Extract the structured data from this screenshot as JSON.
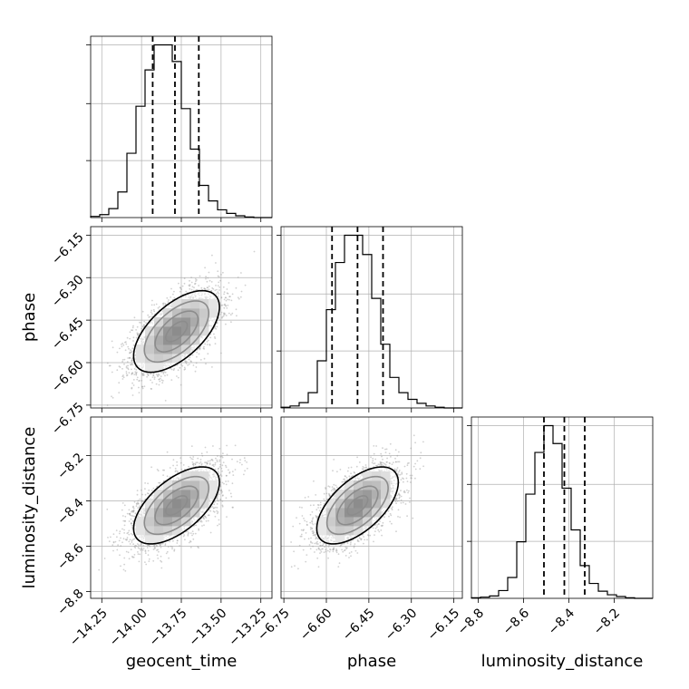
{
  "chart_data": {
    "type": "corner",
    "grid": true,
    "parameters": [
      {
        "name": "geocent_time",
        "label": "geocent_time",
        "range": [
          -14.32,
          -13.18
        ],
        "ticks": [
          -14.25,
          -14.0,
          -13.75,
          -13.5,
          -13.25
        ],
        "tick_labels": [
          "−14.25",
          "−14.00",
          "−13.75",
          "−13.50",
          "−13.25"
        ],
        "mean": -13.78,
        "sd": 0.135,
        "quantiles": [
          -13.93,
          -13.79,
          -13.64
        ],
        "histogram": {
          "edges_start": -14.32,
          "bin_width": 0.057,
          "counts": [
            2,
            5,
            15,
            43,
            108,
            187,
            248,
            290,
            290,
            262,
            183,
            115,
            54,
            28,
            13,
            7,
            3,
            1,
            0,
            0
          ]
        }
      },
      {
        "name": "phase",
        "label": "phase",
        "range": [
          -6.76,
          -6.12
        ],
        "ticks": [
          -6.75,
          -6.6,
          -6.45,
          -6.3,
          -6.15
        ],
        "tick_labels": [
          "−6.75",
          "−6.60",
          "−6.45",
          "−6.30",
          "−6.15"
        ],
        "mean": -6.49,
        "sd": 0.072,
        "quantiles": [
          -6.58,
          -6.49,
          -6.4
        ],
        "histogram": {
          "edges_start": -6.76,
          "bin_width": 0.032,
          "counts": [
            1,
            3,
            8,
            23,
            71,
            148,
            219,
            260,
            260,
            231,
            165,
            96,
            46,
            23,
            13,
            7,
            3,
            1,
            0,
            0
          ]
        }
      },
      {
        "name": "luminosity_distance",
        "label": "luminosity_distance",
        "range": [
          -8.83,
          -8.03
        ],
        "ticks": [
          -8.8,
          -8.6,
          -8.4,
          -8.2
        ],
        "tick_labels": [
          "−8.8",
          "−8.6",
          "−8.4",
          "−8.2"
        ],
        "mean": -8.42,
        "sd": 0.085,
        "quantiles": [
          -8.51,
          -8.42,
          -8.33
        ],
        "histogram": {
          "edges_start": -8.83,
          "bin_width": 0.04,
          "counts": [
            1,
            2,
            4,
            13,
            35,
            95,
            175,
            245,
            290,
            260,
            185,
            115,
            55,
            25,
            12,
            6,
            3,
            1,
            0,
            0
          ]
        }
      }
    ],
    "correlation": 0.6,
    "scatter_points": 3200,
    "contour_levels_sigma": [
      0.5,
      1.0,
      1.5,
      2.0
    ]
  }
}
